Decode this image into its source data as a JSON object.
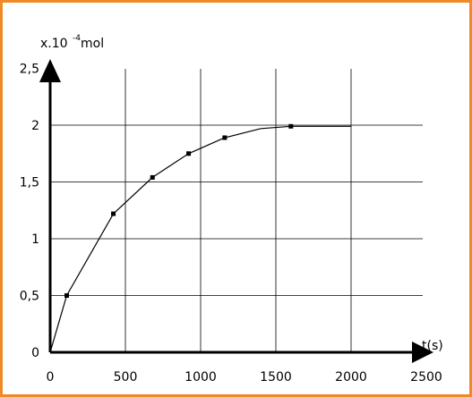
{
  "chart_data": {
    "type": "line",
    "title": "",
    "xlabel": "t(s)",
    "ylabel": {
      "prefix": "x.10",
      "exponent": "-4",
      "unit": " mol"
    },
    "xlim": [
      0,
      2500
    ],
    "ylim": [
      0,
      2.5
    ],
    "grid": true,
    "x_ticks": [
      {
        "value": 0,
        "label": "0"
      },
      {
        "value": 500,
        "label": "500"
      },
      {
        "value": 1000,
        "label": "1000"
      },
      {
        "value": 1500,
        "label": "1500"
      },
      {
        "value": 2000,
        "label": "2000"
      },
      {
        "value": 2500,
        "label": "2500"
      }
    ],
    "y_ticks": [
      {
        "value": 0,
        "label": "0"
      },
      {
        "value": 0.5,
        "label": "0,5"
      },
      {
        "value": 1,
        "label": "1"
      },
      {
        "value": 1.5,
        "label": "1,5"
      },
      {
        "value": 2,
        "label": "2"
      },
      {
        "value": 2.5,
        "label": "2,5"
      }
    ],
    "series": [
      {
        "curve": [
          [
            0,
            0
          ],
          [
            110,
            0.5
          ],
          [
            420,
            1.22
          ],
          [
            680,
            1.54
          ],
          [
            920,
            1.75
          ],
          [
            1160,
            1.89
          ],
          [
            1400,
            1.97
          ],
          [
            1600,
            1.99
          ],
          [
            2000,
            1.99
          ]
        ],
        "markers": [
          [
            110,
            0.5
          ],
          [
            420,
            1.22
          ],
          [
            680,
            1.54
          ],
          [
            920,
            1.75
          ],
          [
            1160,
            1.89
          ],
          [
            1600,
            1.99
          ]
        ]
      }
    ],
    "colors": {
      "frame": "#f08a24",
      "line": "#000000",
      "grid": "#000000"
    }
  }
}
